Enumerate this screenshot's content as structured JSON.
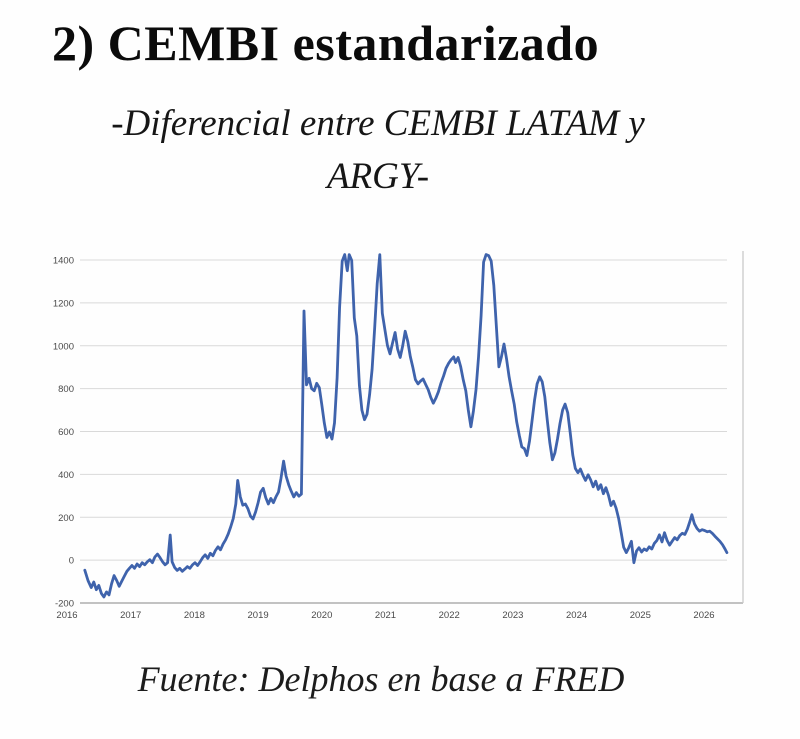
{
  "title": "2) CEMBI estandarizado",
  "subtitle_line1": "-Diferencial entre CEMBI LATAM y",
  "subtitle_line2": "ARGY-",
  "source": "Fuente: Delphos en base a FRED",
  "colors": {
    "line": "#3f63ac",
    "grid": "#d9d9d9",
    "axis": "#9e9e9e",
    "spine": "#c9c9c9",
    "tick_text": "#4a4a4a"
  },
  "chart_data": {
    "type": "line",
    "title": "Diferencial entre CEMBI LATAM y ARGY",
    "xlabel": "",
    "ylabel": "",
    "legend": false,
    "grid": true,
    "ylim": [
      -200,
      1400
    ],
    "xlim": [
      2016,
      2026.6
    ],
    "y_ticks": [
      1400,
      1200,
      1000,
      800,
      600,
      400,
      200,
      0,
      -200
    ],
    "x_ticks": [
      2016,
      2017,
      2018,
      2019,
      2020,
      2021,
      2022,
      2023,
      2024,
      2025,
      2026
    ],
    "series": [
      {
        "name": "CEMBI LATAM - ARGY",
        "points": [
          [
            2016.28,
            -47
          ],
          [
            2016.33,
            -95
          ],
          [
            2016.38,
            -128
          ],
          [
            2016.42,
            -102
          ],
          [
            2016.46,
            -138
          ],
          [
            2016.5,
            -118
          ],
          [
            2016.54,
            -155
          ],
          [
            2016.58,
            -172
          ],
          [
            2016.62,
            -148
          ],
          [
            2016.66,
            -162
          ],
          [
            2016.7,
            -110
          ],
          [
            2016.74,
            -72
          ],
          [
            2016.78,
            -95
          ],
          [
            2016.82,
            -122
          ],
          [
            2016.86,
            -98
          ],
          [
            2016.9,
            -75
          ],
          [
            2016.94,
            -52
          ],
          [
            2016.98,
            -38
          ],
          [
            2017.02,
            -25
          ],
          [
            2017.06,
            -38
          ],
          [
            2017.1,
            -18
          ],
          [
            2017.14,
            -30
          ],
          [
            2017.18,
            -12
          ],
          [
            2017.22,
            -22
          ],
          [
            2017.26,
            -8
          ],
          [
            2017.3,
            2
          ],
          [
            2017.34,
            -12
          ],
          [
            2017.38,
            15
          ],
          [
            2017.42,
            28
          ],
          [
            2017.46,
            12
          ],
          [
            2017.5,
            -8
          ],
          [
            2017.54,
            -22
          ],
          [
            2017.58,
            -12
          ],
          [
            2017.62,
            117
          ],
          [
            2017.65,
            -8
          ],
          [
            2017.69,
            -35
          ],
          [
            2017.73,
            -48
          ],
          [
            2017.77,
            -38
          ],
          [
            2017.81,
            -52
          ],
          [
            2017.85,
            -42
          ],
          [
            2017.89,
            -30
          ],
          [
            2017.93,
            -38
          ],
          [
            2017.97,
            -22
          ],
          [
            2018.01,
            -12
          ],
          [
            2018.05,
            -25
          ],
          [
            2018.09,
            -8
          ],
          [
            2018.13,
            12
          ],
          [
            2018.17,
            25
          ],
          [
            2018.21,
            8
          ],
          [
            2018.25,
            32
          ],
          [
            2018.29,
            20
          ],
          [
            2018.33,
            45
          ],
          [
            2018.37,
            62
          ],
          [
            2018.41,
            48
          ],
          [
            2018.45,
            75
          ],
          [
            2018.49,
            95
          ],
          [
            2018.53,
            122
          ],
          [
            2018.57,
            155
          ],
          [
            2018.61,
            195
          ],
          [
            2018.65,
            262
          ],
          [
            2018.68,
            372
          ],
          [
            2018.72,
            295
          ],
          [
            2018.76,
            256
          ],
          [
            2018.8,
            262
          ],
          [
            2018.84,
            240
          ],
          [
            2018.88,
            205
          ],
          [
            2018.92,
            192
          ],
          [
            2018.96,
            225
          ],
          [
            2019.0,
            268
          ],
          [
            2019.04,
            318
          ],
          [
            2019.08,
            335
          ],
          [
            2019.12,
            292
          ],
          [
            2019.16,
            262
          ],
          [
            2019.2,
            288
          ],
          [
            2019.24,
            268
          ],
          [
            2019.28,
            295
          ],
          [
            2019.32,
            318
          ],
          [
            2019.36,
            382
          ],
          [
            2019.4,
            462
          ],
          [
            2019.44,
            392
          ],
          [
            2019.48,
            352
          ],
          [
            2019.52,
            322
          ],
          [
            2019.56,
            295
          ],
          [
            2019.6,
            315
          ],
          [
            2019.64,
            298
          ],
          [
            2019.68,
            308
          ],
          [
            2019.72,
            1162
          ],
          [
            2019.76,
            818
          ],
          [
            2019.8,
            848
          ],
          [
            2019.84,
            800
          ],
          [
            2019.88,
            790
          ],
          [
            2019.92,
            825
          ],
          [
            2019.96,
            805
          ],
          [
            2020.0,
            725
          ],
          [
            2020.04,
            640
          ],
          [
            2020.08,
            572
          ],
          [
            2020.12,
            598
          ],
          [
            2020.16,
            565
          ],
          [
            2020.2,
            640
          ],
          [
            2020.24,
            850
          ],
          [
            2020.28,
            1180
          ],
          [
            2020.32,
            1395
          ],
          [
            2020.36,
            1425
          ],
          [
            2020.4,
            1350
          ],
          [
            2020.43,
            1425
          ],
          [
            2020.47,
            1398
          ],
          [
            2020.51,
            1130
          ],
          [
            2020.55,
            1045
          ],
          [
            2020.59,
            815
          ],
          [
            2020.63,
            700
          ],
          [
            2020.67,
            655
          ],
          [
            2020.71,
            680
          ],
          [
            2020.75,
            772
          ],
          [
            2020.79,
            890
          ],
          [
            2020.83,
            1085
          ],
          [
            2020.87,
            1290
          ],
          [
            2020.91,
            1425
          ],
          [
            2020.95,
            1152
          ],
          [
            2020.99,
            1075
          ],
          [
            2021.03,
            1002
          ],
          [
            2021.07,
            962
          ],
          [
            2021.11,
            1012
          ],
          [
            2021.15,
            1062
          ],
          [
            2021.19,
            985
          ],
          [
            2021.23,
            945
          ],
          [
            2021.27,
            1000
          ],
          [
            2021.31,
            1068
          ],
          [
            2021.35,
            1020
          ],
          [
            2021.39,
            950
          ],
          [
            2021.43,
            898
          ],
          [
            2021.47,
            842
          ],
          [
            2021.51,
            822
          ],
          [
            2021.55,
            835
          ],
          [
            2021.59,
            845
          ],
          [
            2021.63,
            820
          ],
          [
            2021.67,
            795
          ],
          [
            2021.71,
            760
          ],
          [
            2021.75,
            732
          ],
          [
            2021.79,
            755
          ],
          [
            2021.83,
            785
          ],
          [
            2021.87,
            825
          ],
          [
            2021.91,
            858
          ],
          [
            2021.95,
            895
          ],
          [
            2021.99,
            918
          ],
          [
            2022.03,
            935
          ],
          [
            2022.07,
            948
          ],
          [
            2022.1,
            922
          ],
          [
            2022.14,
            945
          ],
          [
            2022.18,
            902
          ],
          [
            2022.22,
            842
          ],
          [
            2022.26,
            790
          ],
          [
            2022.3,
            700
          ],
          [
            2022.34,
            622
          ],
          [
            2022.38,
            695
          ],
          [
            2022.42,
            795
          ],
          [
            2022.46,
            945
          ],
          [
            2022.5,
            1140
          ],
          [
            2022.54,
            1390
          ],
          [
            2022.58,
            1425
          ],
          [
            2022.62,
            1420
          ],
          [
            2022.66,
            1395
          ],
          [
            2022.7,
            1282
          ],
          [
            2022.74,
            1095
          ],
          [
            2022.78,
            902
          ],
          [
            2022.82,
            948
          ],
          [
            2022.86,
            1008
          ],
          [
            2022.9,
            940
          ],
          [
            2022.94,
            855
          ],
          [
            2022.98,
            790
          ],
          [
            2023.02,
            728
          ],
          [
            2023.06,
            645
          ],
          [
            2023.1,
            582
          ],
          [
            2023.14,
            528
          ],
          [
            2023.18,
            520
          ],
          [
            2023.22,
            488
          ],
          [
            2023.26,
            555
          ],
          [
            2023.3,
            648
          ],
          [
            2023.34,
            748
          ],
          [
            2023.38,
            822
          ],
          [
            2023.42,
            855
          ],
          [
            2023.46,
            832
          ],
          [
            2023.5,
            762
          ],
          [
            2023.54,
            652
          ],
          [
            2023.58,
            548
          ],
          [
            2023.62,
            468
          ],
          [
            2023.66,
            500
          ],
          [
            2023.7,
            565
          ],
          [
            2023.74,
            638
          ],
          [
            2023.78,
            700
          ],
          [
            2023.82,
            728
          ],
          [
            2023.86,
            688
          ],
          [
            2023.9,
            595
          ],
          [
            2023.94,
            490
          ],
          [
            2023.98,
            428
          ],
          [
            2024.02,
            408
          ],
          [
            2024.06,
            425
          ],
          [
            2024.1,
            395
          ],
          [
            2024.14,
            372
          ],
          [
            2024.18,
            398
          ],
          [
            2024.22,
            375
          ],
          [
            2024.26,
            342
          ],
          [
            2024.3,
            368
          ],
          [
            2024.34,
            330
          ],
          [
            2024.38,
            352
          ],
          [
            2024.42,
            310
          ],
          [
            2024.46,
            338
          ],
          [
            2024.5,
            302
          ],
          [
            2024.54,
            255
          ],
          [
            2024.58,
            275
          ],
          [
            2024.62,
            242
          ],
          [
            2024.66,
            195
          ],
          [
            2024.7,
            128
          ],
          [
            2024.74,
            60
          ],
          [
            2024.78,
            35
          ],
          [
            2024.82,
            58
          ],
          [
            2024.86,
            88
          ],
          [
            2024.9,
            -12
          ],
          [
            2024.94,
            42
          ],
          [
            2024.98,
            58
          ],
          [
            2025.02,
            38
          ],
          [
            2025.06,
            52
          ],
          [
            2025.1,
            45
          ],
          [
            2025.14,
            62
          ],
          [
            2025.18,
            52
          ],
          [
            2025.22,
            78
          ],
          [
            2025.26,
            92
          ],
          [
            2025.3,
            118
          ],
          [
            2025.34,
            85
          ],
          [
            2025.38,
            128
          ],
          [
            2025.42,
            92
          ],
          [
            2025.46,
            70
          ],
          [
            2025.5,
            88
          ],
          [
            2025.54,
            105
          ],
          [
            2025.58,
            95
          ],
          [
            2025.62,
            115
          ],
          [
            2025.66,
            125
          ],
          [
            2025.7,
            120
          ],
          [
            2025.74,
            145
          ],
          [
            2025.78,
            182
          ],
          [
            2025.81,
            212
          ],
          [
            2025.85,
            170
          ],
          [
            2025.89,
            148
          ],
          [
            2025.93,
            135
          ],
          [
            2025.97,
            142
          ],
          [
            2026.01,
            138
          ],
          [
            2026.05,
            132
          ],
          [
            2026.09,
            135
          ],
          [
            2026.13,
            125
          ],
          [
            2026.17,
            112
          ],
          [
            2026.21,
            100
          ],
          [
            2026.25,
            88
          ],
          [
            2026.29,
            72
          ],
          [
            2026.33,
            52
          ],
          [
            2026.36,
            35
          ]
        ]
      }
    ]
  }
}
